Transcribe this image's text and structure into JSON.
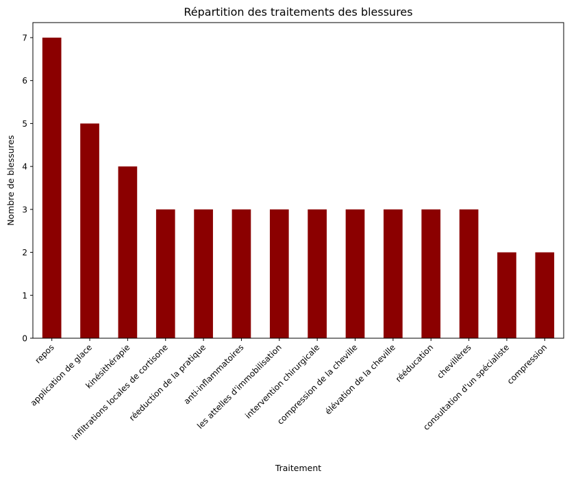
{
  "chart_data": {
    "type": "bar",
    "title": "Répartition des traitements des blessures",
    "xlabel": "Traitement",
    "ylabel": "Nombre de blessures",
    "categories": [
      "repos",
      "application de glace",
      "kinésithérapie",
      "infiltrations locales de cortisone",
      "réeduction de la pratique",
      "anti-inflammatoires",
      "les attelles d'immobilisation",
      "intervention chirurgicale",
      "compression de la cheville",
      "élévation de la cheville",
      "rééducation",
      "chevillères",
      "consultation d'un spécialiste",
      "compression"
    ],
    "values": [
      7,
      5,
      4,
      3,
      3,
      3,
      3,
      3,
      3,
      3,
      3,
      3,
      2,
      2
    ],
    "ylim": [
      0,
      7.35
    ],
    "yticks": [
      0,
      1,
      2,
      3,
      4,
      5,
      6,
      7
    ],
    "bar_color": "#8b0000",
    "grid": false,
    "legend": "none"
  }
}
